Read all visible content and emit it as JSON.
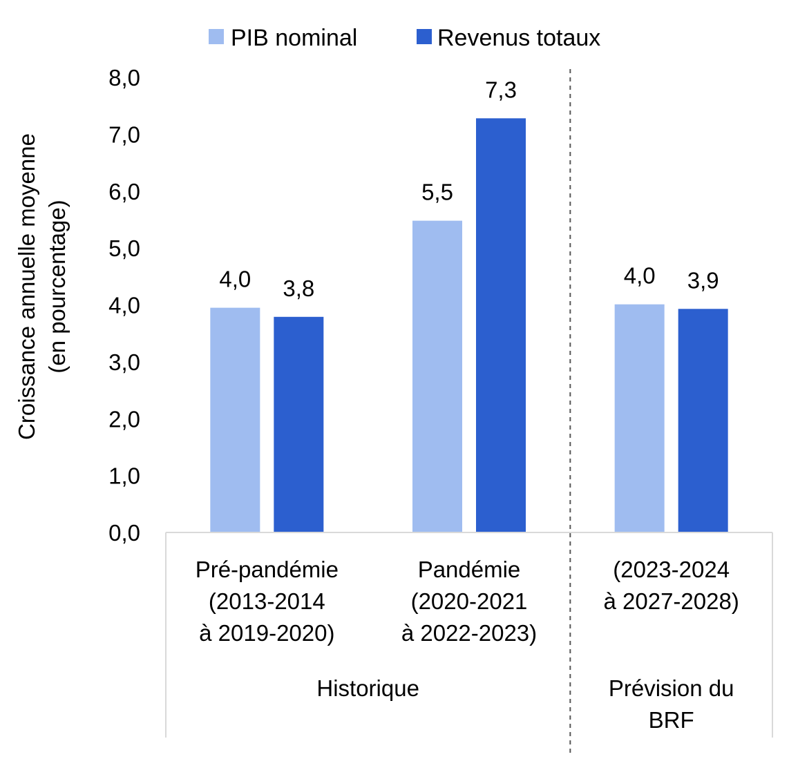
{
  "chart_data": {
    "type": "bar",
    "ylabel_lines": [
      "Croissance annuelle moyenne",
      "(en pourcentage)"
    ],
    "ylim": [
      0,
      8
    ],
    "yticks": [
      "0,0",
      "1,0",
      "2,0",
      "3,0",
      "4,0",
      "5,0",
      "6,0",
      "7,0",
      "8,0"
    ],
    "ytick_values": [
      0,
      1,
      2,
      3,
      4,
      5,
      6,
      7,
      8
    ],
    "legend_position": "top-center",
    "grid": false,
    "categories": [
      {
        "label_lines": [
          "Pré-pandémie",
          "(2013-2014",
          "à 2019-2020)"
        ]
      },
      {
        "label_lines": [
          "Pandémie",
          "(2020-2021",
          "à 2022-2023)"
        ]
      },
      {
        "label_lines": [
          "(2023-2024",
          "à 2027-2028)"
        ]
      }
    ],
    "series": [
      {
        "name": "PIB nominal",
        "color": "#9FBCF0",
        "values": [
          3.95,
          5.48,
          4.01
        ],
        "labels": [
          "4,0",
          "5,5",
          "4,0"
        ]
      },
      {
        "name": "Revenus totaux",
        "color": "#2C5FCF",
        "values": [
          3.79,
          7.28,
          3.93
        ],
        "labels": [
          "3,8",
          "7,3",
          "3,9"
        ]
      }
    ],
    "groups": [
      {
        "label_lines": [
          "Historique"
        ],
        "category_span": [
          0,
          1
        ]
      },
      {
        "label_lines": [
          "Prévision du",
          "BRF"
        ],
        "category_span": [
          2,
          2
        ]
      }
    ]
  }
}
